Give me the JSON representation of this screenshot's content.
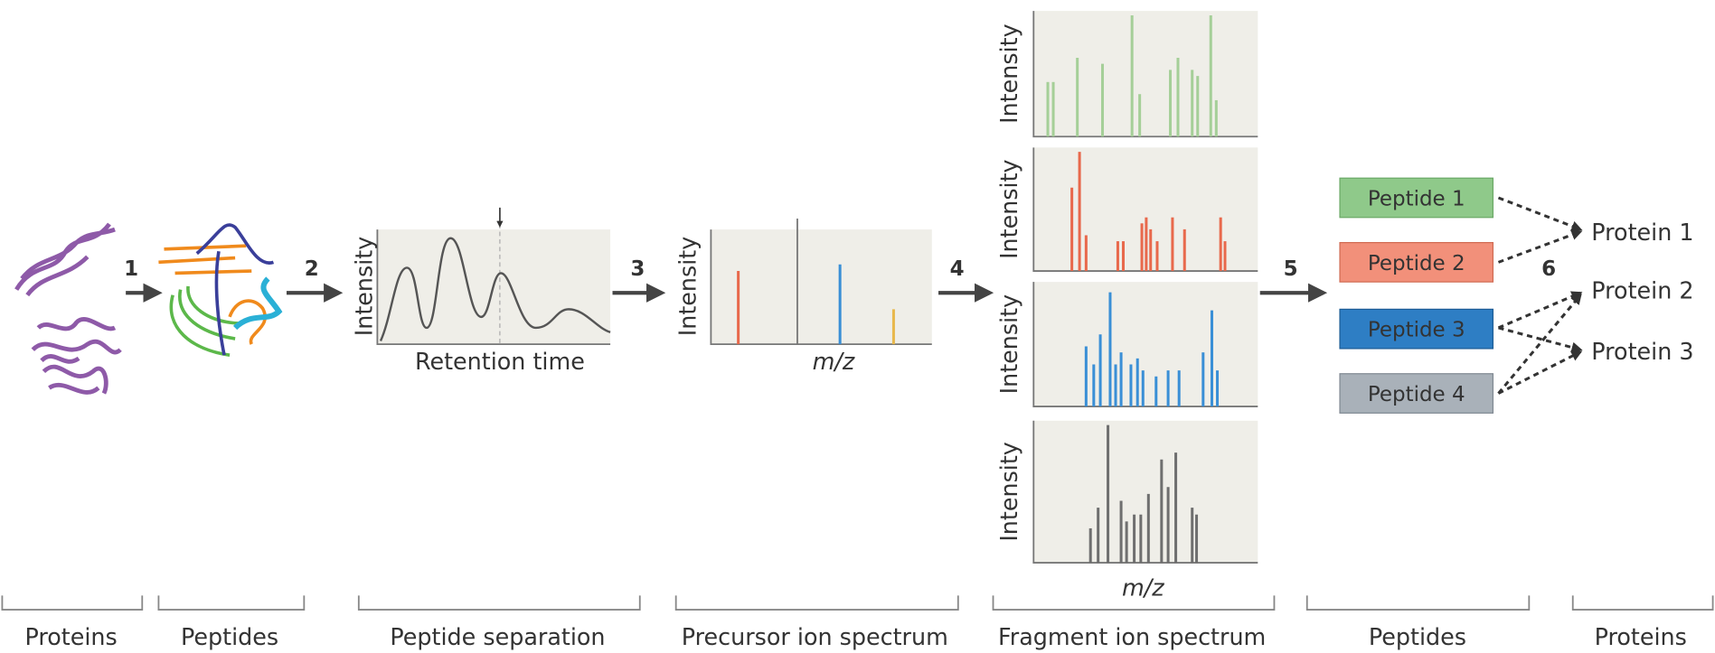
{
  "steps": [
    "1",
    "2",
    "3",
    "4",
    "5",
    "6"
  ],
  "retention_plot": {
    "y_label": "Intensity",
    "x_label": "Retention time"
  },
  "precursor_plot": {
    "y_label": "Intensity",
    "x_label": "m/z"
  },
  "fragment_plots": {
    "y_labels": [
      "Intensity",
      "Intensity",
      "Intensity",
      "Intensity"
    ],
    "x_label": "m/z"
  },
  "peptides": [
    "Peptide 1",
    "Peptide 2",
    "Peptide 3",
    "Peptide 4"
  ],
  "proteins": [
    "Protein 1",
    "Protein 2",
    "Protein 3"
  ],
  "stages": [
    "Proteins",
    "Peptides",
    "Peptide separation",
    "Precursor ion spectrum",
    "Fragment ion spectrum",
    "Peptides",
    "Proteins"
  ]
}
